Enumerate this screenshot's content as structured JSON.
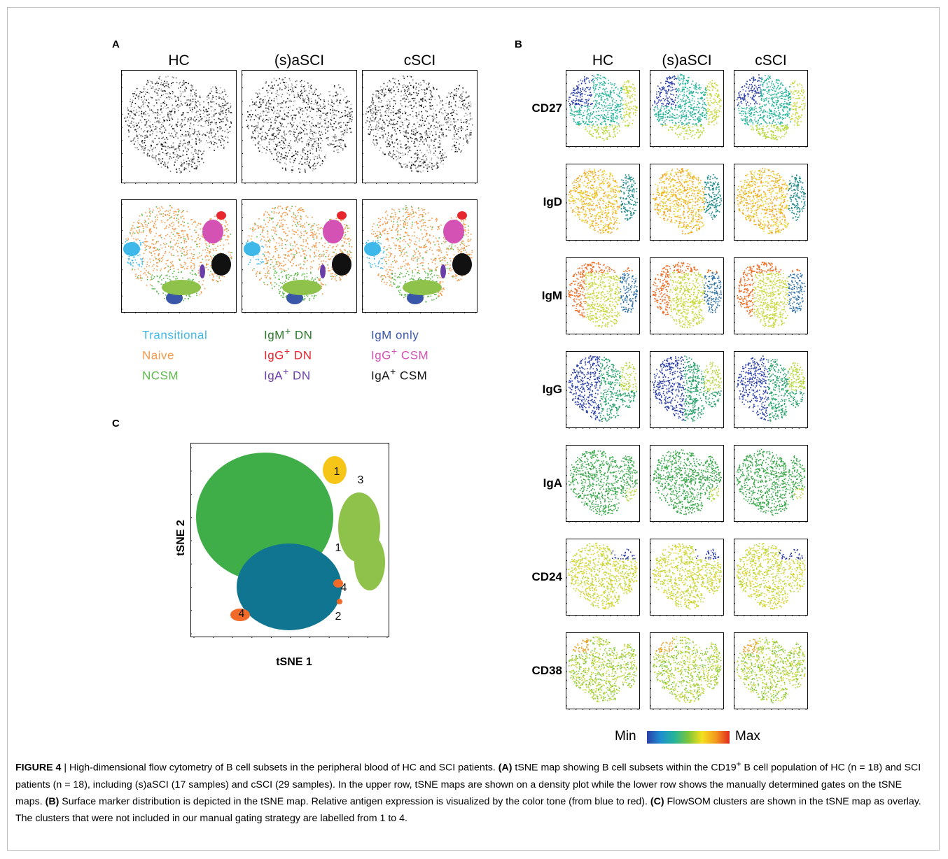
{
  "panels": {
    "a": {
      "label": "A",
      "columns": [
        "HC",
        "(s)aSCI",
        "cSCI"
      ]
    },
    "b": {
      "label": "B",
      "columns": [
        "HC",
        "(s)aSCI",
        "cSCI"
      ],
      "markers": [
        "CD27",
        "IgD",
        "IgM",
        "IgG",
        "IgA",
        "CD24",
        "CD38"
      ],
      "scale_min": "Min",
      "scale_max": "Max"
    },
    "c": {
      "label": "C",
      "xlabel": "tSNE 1",
      "ylabel": "tSNE 2",
      "clusters": [
        "1",
        "3",
        "1",
        "4",
        "4",
        "2"
      ]
    }
  },
  "legend": [
    {
      "base": "Transitional",
      "sup": "",
      "rest": "",
      "color": "#3db8e8"
    },
    {
      "base": "Naive",
      "sup": "",
      "rest": "",
      "color": "#f39a4a"
    },
    {
      "base": "NCSM",
      "sup": "",
      "rest": "",
      "color": "#5cb84a"
    },
    {
      "base": "IgM",
      "sup": "+",
      "rest": " DN",
      "color": "#2a7a2a"
    },
    {
      "base": "IgG",
      "sup": "+",
      "rest": " DN",
      "color": "#e8262e"
    },
    {
      "base": "IgA",
      "sup": "+",
      "rest": " DN",
      "color": "#6a3ea8"
    },
    {
      "base": "IgM only",
      "sup": "",
      "rest": "",
      "color": "#3a56a8"
    },
    {
      "base": "IgG",
      "sup": "+",
      "rest": " CSM",
      "color": "#d452b4"
    },
    {
      "base": "IgA",
      "sup": "+",
      "rest": " CSM",
      "color": "#111111"
    }
  ],
  "caption": {
    "figure_label": "FIGURE 4",
    "sep": " | ",
    "title": "High-dimensional flow cytometry of B cell subsets in the peripheral blood of HC and SCI patients.",
    "a_tag": "(A)",
    "a_text_1": " tSNE map showing B cell subsets within the CD19",
    "a_sup": "+",
    "a_text_2": " B cell population of HC (n = 18) and SCI patients (n = 18), including (s)aSCI (17 samples) and cSCI (29 samples). In the upper row, tSNE maps are shown on a density plot while the lower row shows the manually determined gates on the tSNE maps.",
    "b_tag": "(B)",
    "b_text": " Surface marker distribution is depicted in the tSNE map. Relative antigen expression is visualized by the color tone (from blue to red).",
    "c_tag": "(C)",
    "c_text": " FlowSOM clusters are shown in the tSNE map as overlay. The clusters that were not included in our manual gating strategy are labelled from 1 to 4."
  },
  "colors": {
    "cluster_green": "#3fae49",
    "cluster_teal": "#0f7590",
    "cluster_light": "#8fc24a",
    "cluster_yellow": "#f5c518",
    "cluster_orange": "#f26a2a"
  }
}
